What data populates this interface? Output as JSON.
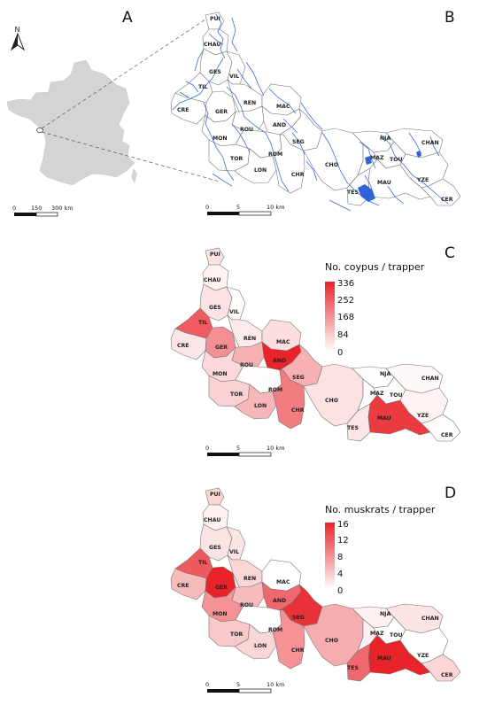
{
  "panels": [
    {
      "letter": "A"
    },
    {
      "letter": "B"
    },
    {
      "letter": "C"
    },
    {
      "letter": "D"
    }
  ],
  "north_arrow": {
    "label": "N"
  },
  "france_scale": {
    "ticks": [
      "0",
      "150",
      "300 km"
    ]
  },
  "local_scale": {
    "ticks": [
      "0",
      "5",
      "10 km"
    ]
  },
  "legend_coypus": {
    "title": "No. coypus / trapper",
    "ticks": [
      "336",
      "252",
      "168",
      "84",
      "0"
    ],
    "max": 336,
    "color_low": "#ffffff",
    "color_high": "#e8242a"
  },
  "legend_muskrats": {
    "title": "No. muskrats / trapper",
    "ticks": [
      "16",
      "12",
      "8",
      "4",
      "0"
    ],
    "max": 16,
    "color_low": "#ffffff",
    "color_high": "#e8242a"
  },
  "municipalities": [
    {
      "code": "PUI",
      "coypus": 45,
      "muskrats": 3
    },
    {
      "code": "CHAU",
      "coypus": 20,
      "muskrats": 1
    },
    {
      "code": "GES",
      "coypus": 45,
      "muskrats": 2
    },
    {
      "code": "VIL",
      "coypus": 5,
      "muskrats": 2
    },
    {
      "code": "TIL",
      "coypus": 250,
      "muskrats": 12
    },
    {
      "code": "CRE",
      "coypus": 40,
      "muskrats": 5
    },
    {
      "code": "GER",
      "coypus": 170,
      "muskrats": 16
    },
    {
      "code": "REN",
      "coypus": 30,
      "muskrats": 3
    },
    {
      "code": "MAC",
      "coypus": 50,
      "muskrats": 0
    },
    {
      "code": "ROU",
      "coypus": 120,
      "muskrats": 5
    },
    {
      "code": "AND",
      "coypus": 336,
      "muskrats": 11
    },
    {
      "code": "SEG",
      "coypus": 120,
      "muskrats": 15
    },
    {
      "code": "MON",
      "coypus": 60,
      "muskrats": 8
    },
    {
      "code": "TOR",
      "coypus": 70,
      "muskrats": 4
    },
    {
      "code": "ROM",
      "coypus": 5,
      "muskrats": 0
    },
    {
      "code": "LON",
      "coypus": 110,
      "muskrats": 3
    },
    {
      "code": "CHR",
      "coypus": 200,
      "muskrats": 8
    },
    {
      "code": "CHO",
      "coypus": 45,
      "muskrats": 6
    },
    {
      "code": "NJA",
      "coypus": 5,
      "muskrats": 1
    },
    {
      "code": "CHAN",
      "coypus": 10,
      "muskrats": 2
    },
    {
      "code": "MAZ",
      "coypus": 5,
      "muskrats": 1
    },
    {
      "code": "TOU",
      "coypus": 5,
      "muskrats": 0
    },
    {
      "code": "TES",
      "coypus": 40,
      "muskrats": 11
    },
    {
      "code": "MAU",
      "coypus": 300,
      "muskrats": 16
    },
    {
      "code": "YZE",
      "coypus": 20,
      "muskrats": 0
    },
    {
      "code": "CER",
      "coypus": 5,
      "muskrats": 3
    }
  ],
  "colors": {
    "region_stroke": "#777777",
    "river": "#3a6fd8",
    "lake": "#2f63d6",
    "france": "#d4d4d4"
  }
}
